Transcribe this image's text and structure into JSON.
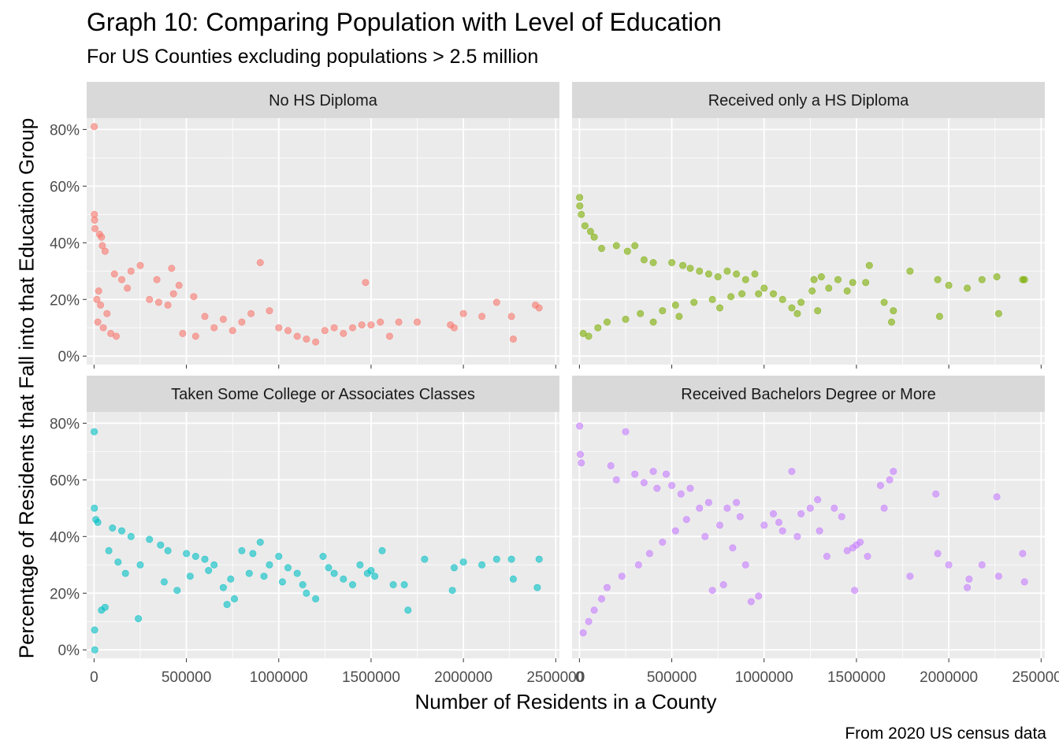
{
  "title": "Graph 10: Comparing Population with Level of Education",
  "subtitle": "For US Counties excluding populations > 2.5 million",
  "caption": "From 2020 US census data",
  "chart_data": {
    "type": "scatter",
    "title": "Graph 10: Comparing Population with Level of Education",
    "subtitle": "For US Counties excluding populations > 2.5 million",
    "xlabel": "Number of Residents in a County",
    "ylabel": "Percentage of Residents that Fall into that Education Group",
    "xlim": [
      -40000,
      2520000
    ],
    "ylim": [
      -0.03,
      0.84
    ],
    "x_ticks": [
      0,
      500000,
      1000000,
      1500000,
      2000000,
      2500000
    ],
    "x_tick_labels": [
      "0",
      "500000",
      "1000000",
      "1500000",
      "2000000",
      "2500000"
    ],
    "y_ticks": [
      0,
      0.2,
      0.4,
      0.6,
      0.8
    ],
    "y_tick_labels": [
      "0%",
      "20%",
      "40%",
      "60%",
      "80%"
    ],
    "grid": true,
    "legend": "none",
    "facets": [
      {
        "name": "No HS Diploma",
        "color": "#F8766D",
        "points": [
          [
            1000,
            0.81
          ],
          [
            2000,
            0.5
          ],
          [
            3000,
            0.48
          ],
          [
            5000,
            0.45
          ],
          [
            30000,
            0.43
          ],
          [
            40000,
            0.42
          ],
          [
            45000,
            0.39
          ],
          [
            60000,
            0.37
          ],
          [
            250000,
            0.32
          ],
          [
            420000,
            0.31
          ],
          [
            900000,
            0.33
          ],
          [
            340000,
            0.27
          ],
          [
            460000,
            0.25
          ],
          [
            430000,
            0.22
          ],
          [
            1470000,
            0.26
          ],
          [
            540000,
            0.21
          ],
          [
            110000,
            0.29
          ],
          [
            150000,
            0.27
          ],
          [
            200000,
            0.3
          ],
          [
            180000,
            0.24
          ],
          [
            300000,
            0.2
          ],
          [
            400000,
            0.18
          ],
          [
            350000,
            0.19
          ],
          [
            600000,
            0.14
          ],
          [
            700000,
            0.13
          ],
          [
            800000,
            0.12
          ],
          [
            850000,
            0.15
          ],
          [
            950000,
            0.16
          ],
          [
            1000000,
            0.1
          ],
          [
            1050000,
            0.09
          ],
          [
            1100000,
            0.07
          ],
          [
            1150000,
            0.06
          ],
          [
            1200000,
            0.05
          ],
          [
            1250000,
            0.09
          ],
          [
            1300000,
            0.1
          ],
          [
            1350000,
            0.08
          ],
          [
            1400000,
            0.1
          ],
          [
            1450000,
            0.11
          ],
          [
            1500000,
            0.11
          ],
          [
            1550000,
            0.12
          ],
          [
            1600000,
            0.07
          ],
          [
            1650000,
            0.12
          ],
          [
            1750000,
            0.12
          ],
          [
            1930000,
            0.11
          ],
          [
            1950000,
            0.1
          ],
          [
            2000000,
            0.15
          ],
          [
            2100000,
            0.14
          ],
          [
            2180000,
            0.19
          ],
          [
            2260000,
            0.14
          ],
          [
            2270000,
            0.06
          ],
          [
            2390000,
            0.18
          ],
          [
            2410000,
            0.17
          ],
          [
            650000,
            0.1
          ],
          [
            750000,
            0.09
          ],
          [
            550000,
            0.07
          ],
          [
            480000,
            0.08
          ],
          [
            20000,
            0.12
          ],
          [
            50000,
            0.1
          ],
          [
            70000,
            0.15
          ],
          [
            90000,
            0.08
          ],
          [
            120000,
            0.07
          ],
          [
            15000,
            0.2
          ],
          [
            25000,
            0.23
          ],
          [
            35000,
            0.18
          ]
        ]
      },
      {
        "name": "Received only a HS Diploma",
        "color": "#7CAE00",
        "points": [
          [
            1000,
            0.56
          ],
          [
            2000,
            0.53
          ],
          [
            10000,
            0.5
          ],
          [
            30000,
            0.46
          ],
          [
            60000,
            0.44
          ],
          [
            80000,
            0.42
          ],
          [
            120000,
            0.38
          ],
          [
            200000,
            0.39
          ],
          [
            300000,
            0.39
          ],
          [
            260000,
            0.37
          ],
          [
            350000,
            0.34
          ],
          [
            400000,
            0.33
          ],
          [
            500000,
            0.33
          ],
          [
            560000,
            0.32
          ],
          [
            600000,
            0.31
          ],
          [
            650000,
            0.3
          ],
          [
            700000,
            0.29
          ],
          [
            750000,
            0.28
          ],
          [
            800000,
            0.3
          ],
          [
            850000,
            0.29
          ],
          [
            900000,
            0.27
          ],
          [
            950000,
            0.29
          ],
          [
            1000000,
            0.24
          ],
          [
            1050000,
            0.22
          ],
          [
            1100000,
            0.2
          ],
          [
            1150000,
            0.17
          ],
          [
            1180000,
            0.15
          ],
          [
            1200000,
            0.19
          ],
          [
            1260000,
            0.23
          ],
          [
            1270000,
            0.27
          ],
          [
            1290000,
            0.16
          ],
          [
            1310000,
            0.28
          ],
          [
            1350000,
            0.24
          ],
          [
            1400000,
            0.27
          ],
          [
            1450000,
            0.23
          ],
          [
            1480000,
            0.26
          ],
          [
            1550000,
            0.26
          ],
          [
            1570000,
            0.32
          ],
          [
            1650000,
            0.19
          ],
          [
            1690000,
            0.12
          ],
          [
            1700000,
            0.16
          ],
          [
            1790000,
            0.3
          ],
          [
            1940000,
            0.27
          ],
          [
            1950000,
            0.14
          ],
          [
            2000000,
            0.25
          ],
          [
            2100000,
            0.24
          ],
          [
            2180000,
            0.27
          ],
          [
            2260000,
            0.28
          ],
          [
            2270000,
            0.15
          ],
          [
            2400000,
            0.27
          ],
          [
            2410000,
            0.27
          ],
          [
            100000,
            0.1
          ],
          [
            150000,
            0.12
          ],
          [
            250000,
            0.13
          ],
          [
            330000,
            0.15
          ],
          [
            450000,
            0.16
          ],
          [
            520000,
            0.18
          ],
          [
            620000,
            0.19
          ],
          [
            720000,
            0.2
          ],
          [
            820000,
            0.21
          ],
          [
            880000,
            0.22
          ],
          [
            50000,
            0.07
          ],
          [
            20000,
            0.08
          ],
          [
            400000,
            0.12
          ],
          [
            540000,
            0.14
          ],
          [
            760000,
            0.17
          ],
          [
            970000,
            0.22
          ]
        ]
      },
      {
        "name": "Taken Some College or Associates Classes",
        "color": "#00BFC4",
        "points": [
          [
            1000,
            0.77
          ],
          [
            2000,
            0.5
          ],
          [
            3000,
            0.07
          ],
          [
            4000,
            0.0
          ],
          [
            10000,
            0.46
          ],
          [
            20000,
            0.45
          ],
          [
            40000,
            0.14
          ],
          [
            60000,
            0.15
          ],
          [
            240000,
            0.11
          ],
          [
            100000,
            0.43
          ],
          [
            150000,
            0.42
          ],
          [
            200000,
            0.4
          ],
          [
            300000,
            0.39
          ],
          [
            360000,
            0.37
          ],
          [
            400000,
            0.35
          ],
          [
            500000,
            0.34
          ],
          [
            550000,
            0.33
          ],
          [
            600000,
            0.32
          ],
          [
            650000,
            0.3
          ],
          [
            700000,
            0.22
          ],
          [
            720000,
            0.16
          ],
          [
            760000,
            0.18
          ],
          [
            800000,
            0.35
          ],
          [
            860000,
            0.34
          ],
          [
            900000,
            0.38
          ],
          [
            950000,
            0.3
          ],
          [
            1000000,
            0.33
          ],
          [
            1050000,
            0.29
          ],
          [
            1100000,
            0.27
          ],
          [
            1130000,
            0.23
          ],
          [
            1150000,
            0.2
          ],
          [
            1200000,
            0.18
          ],
          [
            1240000,
            0.33
          ],
          [
            1270000,
            0.29
          ],
          [
            1300000,
            0.27
          ],
          [
            1350000,
            0.25
          ],
          [
            1400000,
            0.23
          ],
          [
            1440000,
            0.3
          ],
          [
            1480000,
            0.27
          ],
          [
            1500000,
            0.28
          ],
          [
            1520000,
            0.26
          ],
          [
            1560000,
            0.35
          ],
          [
            1620000,
            0.23
          ],
          [
            1680000,
            0.23
          ],
          [
            1700000,
            0.14
          ],
          [
            1790000,
            0.32
          ],
          [
            1940000,
            0.21
          ],
          [
            1950000,
            0.29
          ],
          [
            2000000,
            0.31
          ],
          [
            2100000,
            0.3
          ],
          [
            2180000,
            0.32
          ],
          [
            2260000,
            0.32
          ],
          [
            2270000,
            0.25
          ],
          [
            2400000,
            0.22
          ],
          [
            2410000,
            0.32
          ],
          [
            450000,
            0.21
          ],
          [
            380000,
            0.24
          ],
          [
            520000,
            0.26
          ],
          [
            620000,
            0.28
          ],
          [
            740000,
            0.25
          ],
          [
            840000,
            0.27
          ],
          [
            920000,
            0.26
          ],
          [
            1020000,
            0.24
          ],
          [
            130000,
            0.31
          ],
          [
            250000,
            0.3
          ],
          [
            80000,
            0.35
          ],
          [
            170000,
            0.27
          ]
        ]
      },
      {
        "name": "Received Bachelors Degree or More",
        "color": "#C77CFF",
        "points": [
          [
            1000,
            0.79
          ],
          [
            5000,
            0.69
          ],
          [
            10000,
            0.66
          ],
          [
            250000,
            0.77
          ],
          [
            170000,
            0.65
          ],
          [
            200000,
            0.6
          ],
          [
            300000,
            0.62
          ],
          [
            350000,
            0.59
          ],
          [
            400000,
            0.63
          ],
          [
            420000,
            0.57
          ],
          [
            470000,
            0.62
          ],
          [
            500000,
            0.58
          ],
          [
            550000,
            0.55
          ],
          [
            600000,
            0.57
          ],
          [
            650000,
            0.5
          ],
          [
            700000,
            0.52
          ],
          [
            720000,
            0.21
          ],
          [
            780000,
            0.23
          ],
          [
            800000,
            0.5
          ],
          [
            850000,
            0.52
          ],
          [
            870000,
            0.47
          ],
          [
            900000,
            0.3
          ],
          [
            930000,
            0.17
          ],
          [
            970000,
            0.19
          ],
          [
            1000000,
            0.44
          ],
          [
            1050000,
            0.48
          ],
          [
            1080000,
            0.45
          ],
          [
            1100000,
            0.42
          ],
          [
            1150000,
            0.63
          ],
          [
            1180000,
            0.4
          ],
          [
            1200000,
            0.48
          ],
          [
            1250000,
            0.5
          ],
          [
            1290000,
            0.53
          ],
          [
            1300000,
            0.42
          ],
          [
            1340000,
            0.33
          ],
          [
            1380000,
            0.5
          ],
          [
            1420000,
            0.47
          ],
          [
            1450000,
            0.35
          ],
          [
            1480000,
            0.36
          ],
          [
            1490000,
            0.21
          ],
          [
            1500000,
            0.37
          ],
          [
            1520000,
            0.38
          ],
          [
            1560000,
            0.33
          ],
          [
            1630000,
            0.58
          ],
          [
            1650000,
            0.5
          ],
          [
            1680000,
            0.6
          ],
          [
            1700000,
            0.63
          ],
          [
            1790000,
            0.26
          ],
          [
            1930000,
            0.55
          ],
          [
            1940000,
            0.34
          ],
          [
            2000000,
            0.3
          ],
          [
            2100000,
            0.22
          ],
          [
            2110000,
            0.25
          ],
          [
            2180000,
            0.3
          ],
          [
            2260000,
            0.54
          ],
          [
            2270000,
            0.26
          ],
          [
            2400000,
            0.34
          ],
          [
            2410000,
            0.24
          ],
          [
            20000,
            0.06
          ],
          [
            50000,
            0.1
          ],
          [
            80000,
            0.14
          ],
          [
            120000,
            0.18
          ],
          [
            150000,
            0.22
          ],
          [
            230000,
            0.26
          ],
          [
            320000,
            0.3
          ],
          [
            380000,
            0.34
          ],
          [
            450000,
            0.38
          ],
          [
            520000,
            0.42
          ],
          [
            580000,
            0.46
          ],
          [
            680000,
            0.4
          ],
          [
            760000,
            0.44
          ],
          [
            830000,
            0.36
          ]
        ]
      }
    ]
  }
}
